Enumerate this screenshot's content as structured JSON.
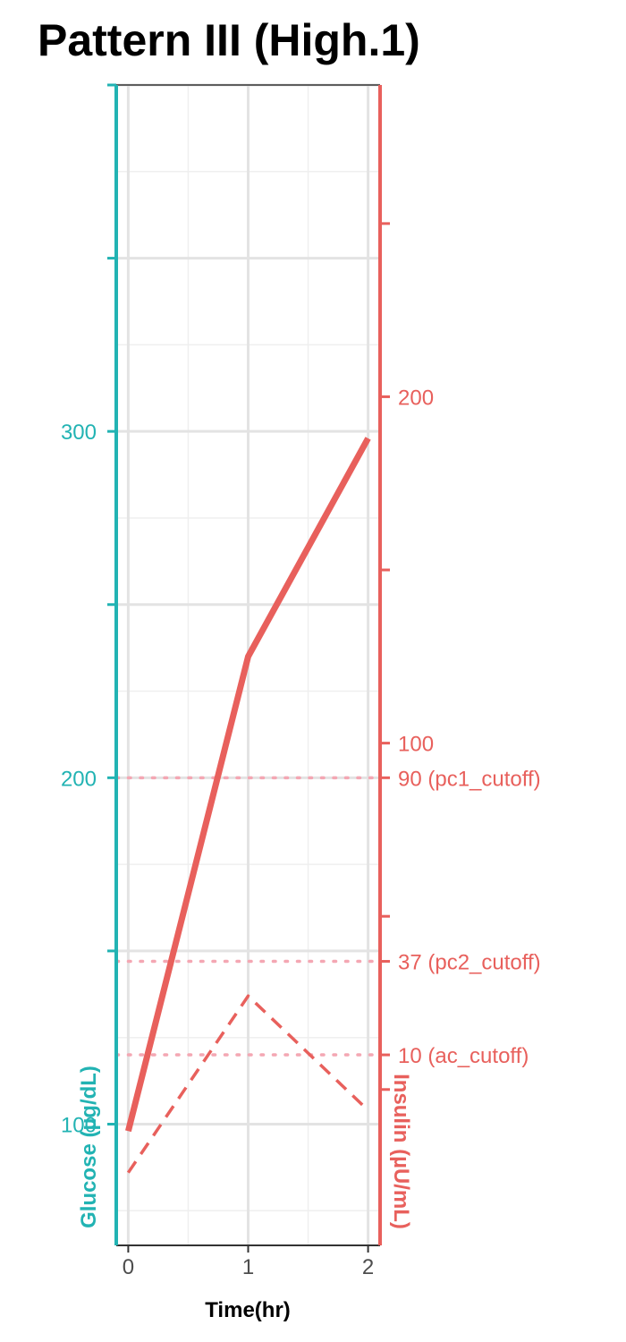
{
  "chart_data": {
    "type": "line",
    "title": "Pattern III (High.1)",
    "xlabel": "Time(hr)",
    "ylabel_left": "Glucose (µg/dL)",
    "ylabel_right": "Insulin (µU/mL)",
    "x": [
      0,
      1,
      2
    ],
    "x_ticks": [
      "0",
      "1",
      "2"
    ],
    "xlim": [
      -0.1,
      2.1
    ],
    "ylim_left": [
      65,
      400
    ],
    "left_ticks": [
      {
        "value": 100,
        "label": "100"
      },
      {
        "value": 200,
        "label": "200"
      },
      {
        "value": 300,
        "label": "300"
      }
    ],
    "ylim_right": [
      -45,
      290
    ],
    "right_ticks": [
      {
        "value": 100,
        "label": "100"
      },
      {
        "value": 200,
        "label": "200"
      }
    ],
    "series": [
      {
        "name": "",
        "axis": "right",
        "style": "solid",
        "values": [
          -12,
          125,
          188
        ]
      },
      {
        "name": "",
        "axis": "left",
        "style": "dashed",
        "values": [
          86,
          137,
          104
        ]
      }
    ],
    "reference_lines": [
      {
        "axis": "right",
        "value": 90,
        "label": "90 (pc1_cutoff)"
      },
      {
        "axis": "right",
        "value": 37,
        "label": "37 (pc2_cutoff)"
      },
      {
        "axis": "right",
        "value": 10,
        "label": "10 (ac_cutoff)"
      }
    ],
    "grid": true,
    "colors": {
      "glucose": "#22b3b3",
      "insulin": "#e8605c",
      "cutoff": "#f4a7b3",
      "grid_major": "#e3e3e3",
      "grid_minor": "#efefef"
    }
  }
}
